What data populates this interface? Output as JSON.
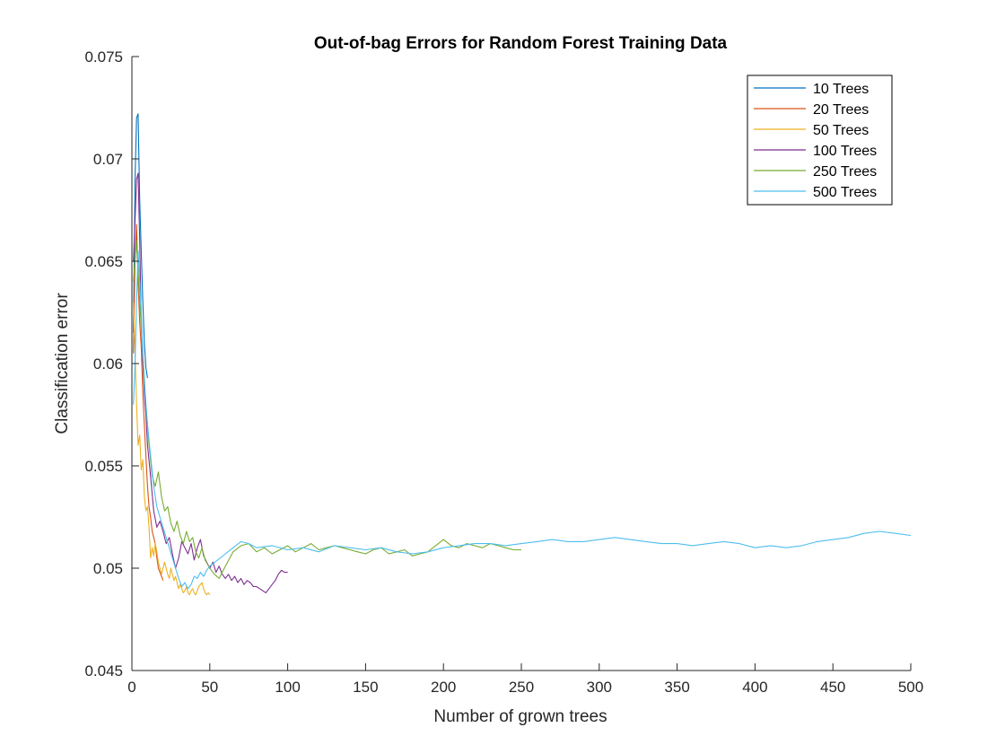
{
  "chart_data": {
    "type": "line",
    "title": "Out-of-bag Errors for Random Forest Training Data",
    "xlabel": "Number of grown trees",
    "ylabel": "Classification error",
    "xlim": [
      0,
      500
    ],
    "ylim": [
      0.045,
      0.075
    ],
    "xticks": [
      "0",
      "50",
      "100",
      "150",
      "200",
      "250",
      "300",
      "350",
      "400",
      "450",
      "500"
    ],
    "yticks": [
      "0.045",
      "0.05",
      "0.055",
      "0.06",
      "0.065",
      "0.07",
      "0.075"
    ],
    "grid": false,
    "legend_position": "top-right",
    "series": [
      {
        "name": "10 Trees",
        "color": "#0072BD",
        "x": [
          1,
          2,
          3,
          4,
          5,
          6,
          7,
          8,
          9,
          10
        ],
        "y": [
          0.0615,
          0.069,
          0.072,
          0.0722,
          0.068,
          0.0655,
          0.063,
          0.061,
          0.0598,
          0.0593
        ]
      },
      {
        "name": "20 Trees",
        "color": "#D95319",
        "x": [
          1,
          2,
          3,
          4,
          5,
          6,
          7,
          8,
          9,
          10,
          11,
          12,
          13,
          14,
          15,
          16,
          17,
          18,
          19,
          20
        ],
        "y": [
          0.0605,
          0.065,
          0.0668,
          0.064,
          0.062,
          0.0608,
          0.0585,
          0.057,
          0.0555,
          0.054,
          0.053,
          0.0525,
          0.0518,
          0.0515,
          0.0512,
          0.0505,
          0.05,
          0.0498,
          0.0496,
          0.0494
        ]
      },
      {
        "name": "50 Trees",
        "color": "#EDB120",
        "x": [
          1,
          2,
          3,
          4,
          5,
          6,
          7,
          8,
          9,
          10,
          11,
          12,
          13,
          14,
          15,
          16,
          17,
          18,
          19,
          20,
          21,
          22,
          23,
          24,
          25,
          26,
          27,
          28,
          29,
          30,
          31,
          32,
          33,
          34,
          35,
          36,
          37,
          38,
          39,
          40,
          41,
          42,
          43,
          44,
          45,
          46,
          47,
          48,
          49,
          50
        ],
        "y": [
          0.063,
          0.0605,
          0.058,
          0.056,
          0.0565,
          0.0548,
          0.0553,
          0.0535,
          0.0528,
          0.053,
          0.052,
          0.0505,
          0.051,
          0.0506,
          0.0512,
          0.0508,
          0.0503,
          0.05,
          0.0497,
          0.05,
          0.0503,
          0.05,
          0.0497,
          0.0495,
          0.05,
          0.0497,
          0.0494,
          0.0496,
          0.0493,
          0.049,
          0.0492,
          0.049,
          0.0488,
          0.0489,
          0.0491,
          0.0488,
          0.0487,
          0.0489,
          0.049,
          0.0488,
          0.0487,
          0.0489,
          0.0491,
          0.0492,
          0.0493,
          0.049,
          0.0488,
          0.0487,
          0.0488,
          0.0487
        ]
      },
      {
        "name": "100 Trees",
        "color": "#7E2F8E",
        "x": [
          1,
          2,
          3,
          4,
          5,
          6,
          7,
          8,
          9,
          10,
          12,
          14,
          16,
          18,
          20,
          22,
          24,
          26,
          28,
          30,
          32,
          34,
          36,
          38,
          40,
          42,
          44,
          46,
          48,
          50,
          52,
          54,
          56,
          58,
          60,
          62,
          64,
          66,
          68,
          70,
          72,
          74,
          76,
          78,
          80,
          82,
          84,
          86,
          88,
          90,
          92,
          94,
          96,
          98,
          100
        ],
        "y": [
          0.065,
          0.067,
          0.069,
          0.0693,
          0.066,
          0.062,
          0.06,
          0.0585,
          0.0575,
          0.056,
          0.0545,
          0.0528,
          0.052,
          0.0523,
          0.0518,
          0.0512,
          0.0515,
          0.0507,
          0.05,
          0.0505,
          0.0513,
          0.051,
          0.0507,
          0.0512,
          0.0504,
          0.051,
          0.0514,
          0.0506,
          0.0503,
          0.05,
          0.0503,
          0.0498,
          0.0501,
          0.0497,
          0.0495,
          0.0497,
          0.0494,
          0.0496,
          0.0493,
          0.0495,
          0.0492,
          0.0494,
          0.0493,
          0.0491,
          0.0491,
          0.049,
          0.0489,
          0.0488,
          0.049,
          0.0492,
          0.0494,
          0.0497,
          0.0499,
          0.0498,
          0.0498
        ]
      },
      {
        "name": "250 Trees",
        "color": "#77AC30",
        "x": [
          1,
          3,
          5,
          7,
          9,
          11,
          13,
          15,
          17,
          19,
          21,
          23,
          25,
          27,
          29,
          31,
          33,
          35,
          37,
          39,
          41,
          43,
          45,
          47,
          50,
          53,
          56,
          60,
          65,
          70,
          75,
          80,
          85,
          90,
          95,
          100,
          105,
          110,
          115,
          120,
          125,
          130,
          135,
          140,
          145,
          150,
          155,
          160,
          165,
          170,
          175,
          180,
          185,
          190,
          195,
          200,
          205,
          210,
          215,
          220,
          225,
          230,
          235,
          240,
          245,
          250
        ],
        "y": [
          0.064,
          0.066,
          0.063,
          0.0605,
          0.058,
          0.056,
          0.0545,
          0.054,
          0.0547,
          0.0535,
          0.0528,
          0.053,
          0.0522,
          0.0518,
          0.0523,
          0.0516,
          0.0512,
          0.0518,
          0.0513,
          0.0515,
          0.0508,
          0.0505,
          0.051,
          0.0504,
          0.05,
          0.0497,
          0.0495,
          0.0501,
          0.0508,
          0.0511,
          0.0512,
          0.0508,
          0.051,
          0.0507,
          0.0509,
          0.0511,
          0.0508,
          0.051,
          0.0512,
          0.0509,
          0.051,
          0.0511,
          0.051,
          0.0509,
          0.0508,
          0.0507,
          0.0509,
          0.051,
          0.0507,
          0.0508,
          0.0509,
          0.0506,
          0.0507,
          0.0508,
          0.0511,
          0.0514,
          0.0511,
          0.051,
          0.0512,
          0.0511,
          0.051,
          0.0512,
          0.0511,
          0.051,
          0.0509,
          0.0509
        ]
      },
      {
        "name": "500 Trees",
        "color": "#4DBEEE",
        "x": [
          1,
          2,
          3,
          4,
          5,
          6,
          7,
          8,
          10,
          12,
          14,
          16,
          18,
          20,
          22,
          24,
          26,
          28,
          30,
          32,
          34,
          36,
          38,
          40,
          42,
          44,
          46,
          48,
          50,
          55,
          60,
          65,
          70,
          75,
          80,
          90,
          100,
          110,
          120,
          130,
          140,
          150,
          160,
          170,
          180,
          190,
          200,
          210,
          220,
          230,
          240,
          250,
          260,
          270,
          280,
          290,
          300,
          310,
          320,
          330,
          340,
          350,
          360,
          370,
          380,
          390,
          400,
          410,
          420,
          430,
          440,
          450,
          460,
          470,
          480,
          490,
          500
        ],
        "y": [
          0.058,
          0.06,
          0.063,
          0.0655,
          0.064,
          0.0625,
          0.0605,
          0.059,
          0.057,
          0.0555,
          0.054,
          0.053,
          0.0525,
          0.052,
          0.0515,
          0.051,
          0.0505,
          0.05,
          0.0495,
          0.0491,
          0.0493,
          0.049,
          0.0492,
          0.0496,
          0.0495,
          0.0498,
          0.0496,
          0.0499,
          0.0501,
          0.0504,
          0.0507,
          0.051,
          0.0513,
          0.0512,
          0.051,
          0.0511,
          0.0509,
          0.051,
          0.0508,
          0.0511,
          0.051,
          0.0509,
          0.051,
          0.0508,
          0.0507,
          0.0508,
          0.051,
          0.0511,
          0.0512,
          0.0512,
          0.0511,
          0.0512,
          0.0513,
          0.0514,
          0.0513,
          0.0513,
          0.0514,
          0.0515,
          0.0514,
          0.0513,
          0.0512,
          0.0512,
          0.0511,
          0.0512,
          0.0513,
          0.0512,
          0.051,
          0.0511,
          0.051,
          0.0511,
          0.0513,
          0.0514,
          0.0515,
          0.0517,
          0.0518,
          0.0517,
          0.0516
        ]
      }
    ]
  }
}
